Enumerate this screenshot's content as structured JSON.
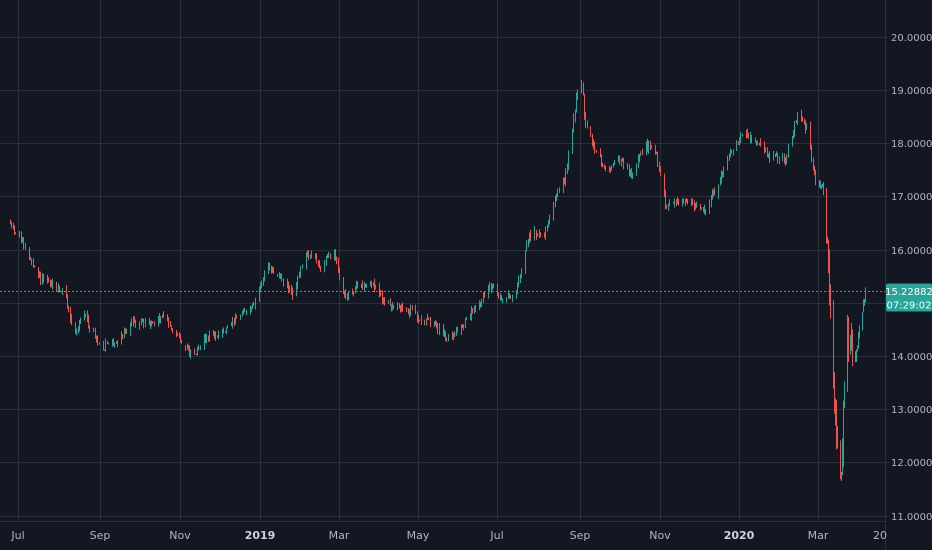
{
  "chart_data": {
    "type": "candlestick",
    "x_ticks": [
      "Jul",
      "Sep",
      "Nov",
      "2019",
      "Mar",
      "May",
      "Jul",
      "Sep",
      "Nov",
      "2020",
      "Mar",
      "20"
    ],
    "year_ticks": [
      "2019",
      "2020"
    ],
    "y_ticks": [
      "11.00000",
      "12.00000",
      "13.00000",
      "14.00000",
      "15.00000",
      "16.00000",
      "17.00000",
      "18.00000",
      "19.00000",
      "20.00000"
    ],
    "ylim": [
      10.9,
      20.5
    ],
    "grid": true,
    "last_price": "15.22882",
    "countdown": "07:29:02",
    "colors": {
      "up": "#26a69a",
      "down": "#ef5350",
      "background": "#131722",
      "grid": "#2a2e39",
      "text": "#b2b5be",
      "price_line": "#26a69a"
    },
    "anchors": [
      [
        "2018-06-25",
        16.5
      ],
      [
        "2018-07-05",
        16.1
      ],
      [
        "2018-07-15",
        15.5
      ],
      [
        "2018-07-25",
        15.35
      ],
      [
        "2018-08-05",
        15.2
      ],
      [
        "2018-08-12",
        14.4
      ],
      [
        "2018-08-20",
        14.8
      ],
      [
        "2018-09-01",
        14.15
      ],
      [
        "2018-09-15",
        14.3
      ],
      [
        "2018-09-25",
        14.65
      ],
      [
        "2018-10-10",
        14.6
      ],
      [
        "2018-10-20",
        14.75
      ],
      [
        "2018-11-01",
        14.3
      ],
      [
        "2018-11-10",
        14.0
      ],
      [
        "2018-11-20",
        14.35
      ],
      [
        "2018-12-05",
        14.45
      ],
      [
        "2018-12-18",
        14.8
      ],
      [
        "2018-12-28",
        15.0
      ],
      [
        "2019-01-05",
        15.65
      ],
      [
        "2019-01-15",
        15.5
      ],
      [
        "2019-01-25",
        15.15
      ],
      [
        "2019-02-05",
        15.95
      ],
      [
        "2019-02-15",
        15.7
      ],
      [
        "2019-02-25",
        15.95
      ],
      [
        "2019-03-05",
        15.1
      ],
      [
        "2019-03-15",
        15.3
      ],
      [
        "2019-03-25",
        15.4
      ],
      [
        "2019-04-05",
        15.0
      ],
      [
        "2019-04-20",
        14.9
      ],
      [
        "2019-05-01",
        14.75
      ],
      [
        "2019-05-15",
        14.55
      ],
      [
        "2019-05-25",
        14.35
      ],
      [
        "2019-06-05",
        14.6
      ],
      [
        "2019-06-15",
        14.95
      ],
      [
        "2019-06-25",
        15.3
      ],
      [
        "2019-07-05",
        15.05
      ],
      [
        "2019-07-15",
        15.2
      ],
      [
        "2019-07-25",
        16.3
      ],
      [
        "2019-08-05",
        16.3
      ],
      [
        "2019-08-12",
        16.9
      ],
      [
        "2019-08-20",
        17.3
      ],
      [
        "2019-08-25",
        18.1
      ],
      [
        "2019-09-01",
        19.4
      ],
      [
        "2019-09-05",
        18.3
      ],
      [
        "2019-09-12",
        17.9
      ],
      [
        "2019-09-20",
        17.5
      ],
      [
        "2019-10-01",
        17.65
      ],
      [
        "2019-10-10",
        17.4
      ],
      [
        "2019-10-20",
        17.95
      ],
      [
        "2019-10-28",
        17.9
      ],
      [
        "2019-11-05",
        16.85
      ],
      [
        "2019-11-20",
        16.95
      ],
      [
        "2019-12-05",
        16.7
      ],
      [
        "2019-12-15",
        17.2
      ],
      [
        "2019-12-25",
        17.85
      ],
      [
        "2020-01-05",
        18.2
      ],
      [
        "2020-01-15",
        17.95
      ],
      [
        "2020-01-25",
        17.75
      ],
      [
        "2020-02-05",
        17.7
      ],
      [
        "2020-02-15",
        18.6
      ],
      [
        "2020-02-22",
        18.2
      ],
      [
        "2020-02-29",
        17.1
      ],
      [
        "2020-03-05",
        17.2
      ],
      [
        "2020-03-10",
        16.3
      ],
      [
        "2020-03-15",
        14.0
      ],
      [
        "2020-03-20",
        12.1
      ],
      [
        "2020-03-24",
        12.0
      ],
      [
        "2020-03-30",
        14.35
      ],
      [
        "2020-04-06",
        14.0
      ],
      [
        "2020-04-10",
        14.45
      ],
      [
        "2020-04-16",
        15.23
      ]
    ]
  }
}
